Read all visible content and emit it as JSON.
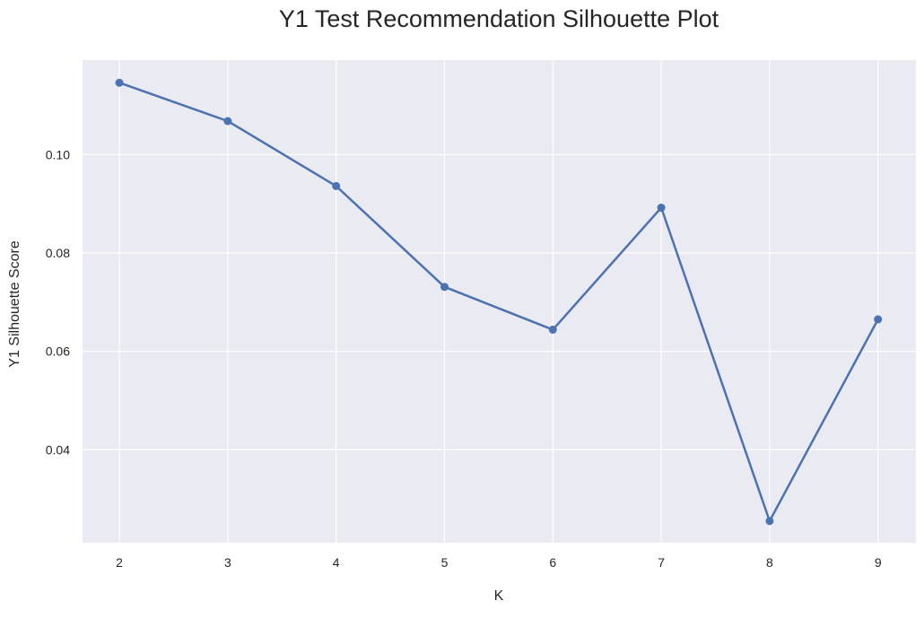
{
  "chart_data": {
    "type": "line",
    "title": "Y1 Test Recommendation Silhouette Plot",
    "xlabel": "K",
    "ylabel": "Y1 Silhouette Score",
    "x": [
      2,
      3,
      4,
      5,
      6,
      7,
      8,
      9
    ],
    "series": [
      {
        "values": [
          0.1146,
          0.1068,
          0.0936,
          0.0731,
          0.0644,
          0.0892,
          0.0255,
          0.0665
        ]
      }
    ],
    "xlim": [
      1.66,
      9.35
    ],
    "ylim": [
      0.0211,
      0.1192
    ],
    "xticks": [
      "2",
      "3",
      "4",
      "5",
      "6",
      "7",
      "8",
      "9"
    ],
    "yticks": [
      "0.04",
      "0.06",
      "0.08",
      "0.10"
    ],
    "ytick_values": [
      0.04,
      0.06,
      0.08,
      0.1
    ],
    "grid": true,
    "colors": {
      "background": "#eaeaf2",
      "grid": "#ffffff",
      "line": "#4c72b0"
    }
  }
}
